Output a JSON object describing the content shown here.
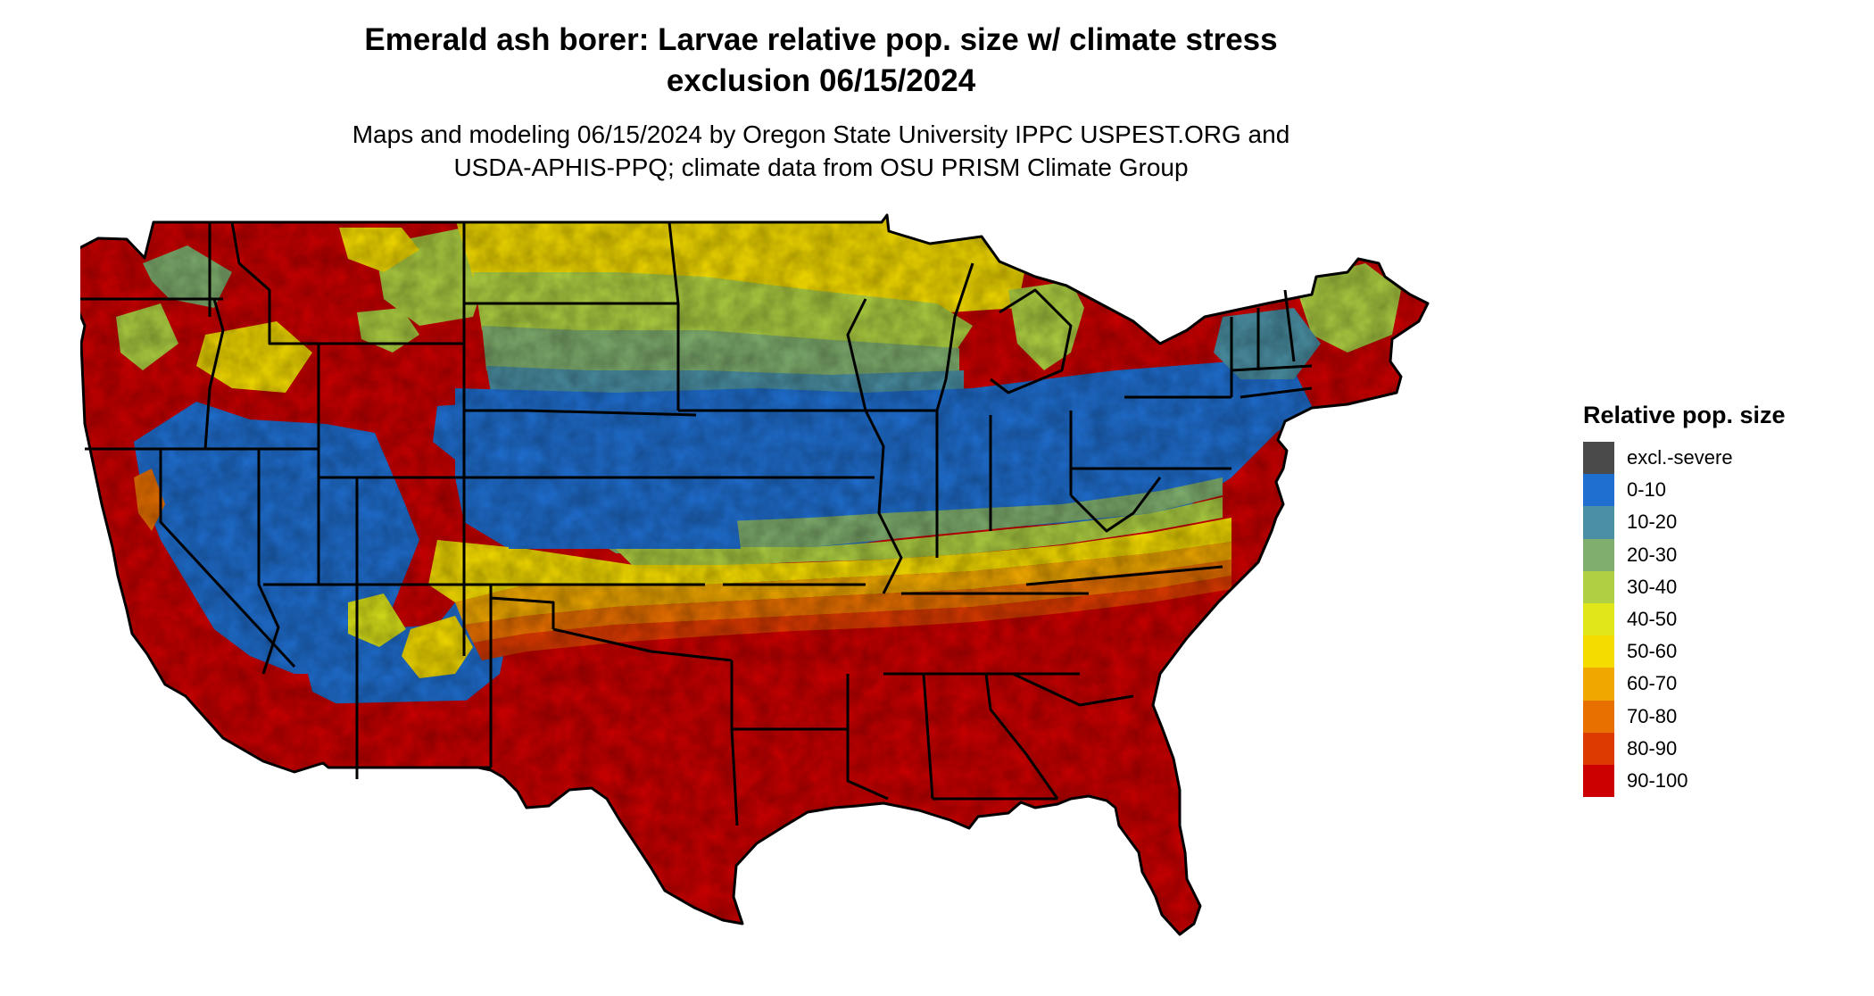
{
  "title_lines": [
    "Emerald ash borer: Larvae relative pop. size w/ climate stress",
    "exclusion 06/15/2024"
  ],
  "subtitle_lines": [
    "Maps and modeling 06/15/2024 by Oregon State University IPPC USPEST.ORG and",
    "USDA-APHIS-PPQ; climate data from OSU PRISM Climate Group"
  ],
  "legend": {
    "title": "Relative pop. size",
    "items": [
      {
        "label": "excl.-severe",
        "color": "#4a4a4a"
      },
      {
        "label": "0-10",
        "color": "#1f6fd1"
      },
      {
        "label": "10-20",
        "color": "#4a8fa3"
      },
      {
        "label": "20-30",
        "color": "#7fae6e"
      },
      {
        "label": "30-40",
        "color": "#aed042"
      },
      {
        "label": "40-50",
        "color": "#dfe71a"
      },
      {
        "label": "50-60",
        "color": "#f5dc00"
      },
      {
        "label": "60-70",
        "color": "#f0a800"
      },
      {
        "label": "70-80",
        "color": "#e87000"
      },
      {
        "label": "80-90",
        "color": "#dc3a00"
      },
      {
        "label": "90-100",
        "color": "#cc0000"
      }
    ]
  },
  "map": {
    "region": "conterminous United States",
    "band_colors": {
      "excluded": "#4a4a4a",
      "p0_10": "#1f6fd1",
      "p10_20": "#4a8fa3",
      "p20_30": "#7fae6e",
      "p30_40": "#aed042",
      "p40_50": "#dfe71a",
      "p50_60": "#f5dc00",
      "p60_70": "#f0a800",
      "p70_80": "#e87000",
      "p80_90": "#dc3a00",
      "p90_100": "#cc0000"
    },
    "border_color": "#000000"
  }
}
